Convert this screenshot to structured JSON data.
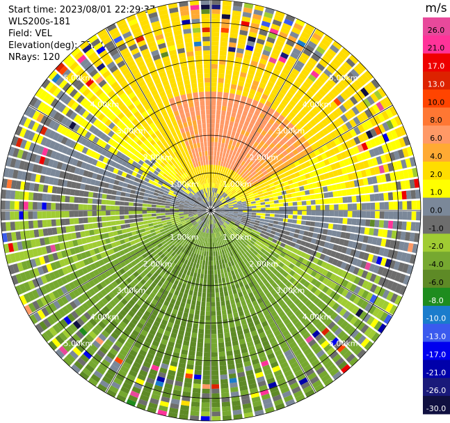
{
  "info": {
    "start_time": "Start time: 2023/08/01 22:29:37",
    "instrument": "WLS200s-181",
    "field": "Field: VEL",
    "elevation": "Elevation(deg): 35.30",
    "nrays": "NRays: 120"
  },
  "chart_data": {
    "type": "heatmap",
    "projection": "polar (PPI)",
    "unit_label": "m/s",
    "range_ring_labels": [
      "1.00km",
      "2.00km",
      "3.00km",
      "4.00km",
      "5.00km"
    ],
    "range_rings_km": [
      1,
      2,
      3,
      4,
      5
    ],
    "max_range_km": 5.6,
    "nrays": 120,
    "spoke_angles_deg": [
      0,
      30,
      60,
      90,
      120,
      150,
      180,
      210,
      240,
      270,
      300,
      330
    ],
    "colorbar": {
      "tick_labels": [
        "26.0",
        "21.0",
        "17.0",
        "13.0",
        "10.0",
        "8.0",
        "6.0",
        "4.0",
        "2.0",
        "1.0",
        "0.0",
        "-1.0",
        "-2.0",
        "-4.0",
        "-6.0",
        "-8.0",
        "-10.0",
        "-13.0",
        "-17.0",
        "-21.0",
        "-26.0",
        "-30.0"
      ],
      "boundaries": [
        30,
        26,
        21,
        17,
        13,
        10,
        8,
        6,
        4,
        2,
        1,
        0,
        -1,
        -2,
        -4,
        -6,
        -8,
        -10,
        -13,
        -17,
        -21,
        -26,
        -30
      ],
      "colors": [
        "#e8499b",
        "#ff3399",
        "#ee0000",
        "#dd2200",
        "#ff4400",
        "#ff7733",
        "#ff9966",
        "#ffaa33",
        "#ffdd00",
        "#ffff00",
        "#7b8899",
        "#6d6d6d",
        "#a0cc33",
        "#76a830",
        "#5e8a26",
        "#1e8c1e",
        "#1a7ccc",
        "#3a5aee",
        "#0000ee",
        "#0000aa",
        "#1a1a7a",
        "#101040"
      ]
    },
    "velocity_field_summary": "Positive (receding, 2 to 10 m/s) in the northern half with maxima about 8 m/s north-northwest near 2 km; negative (-1 to -6 m/s) in the southern half; noisy/mixed values beyond about 4.5 km."
  }
}
